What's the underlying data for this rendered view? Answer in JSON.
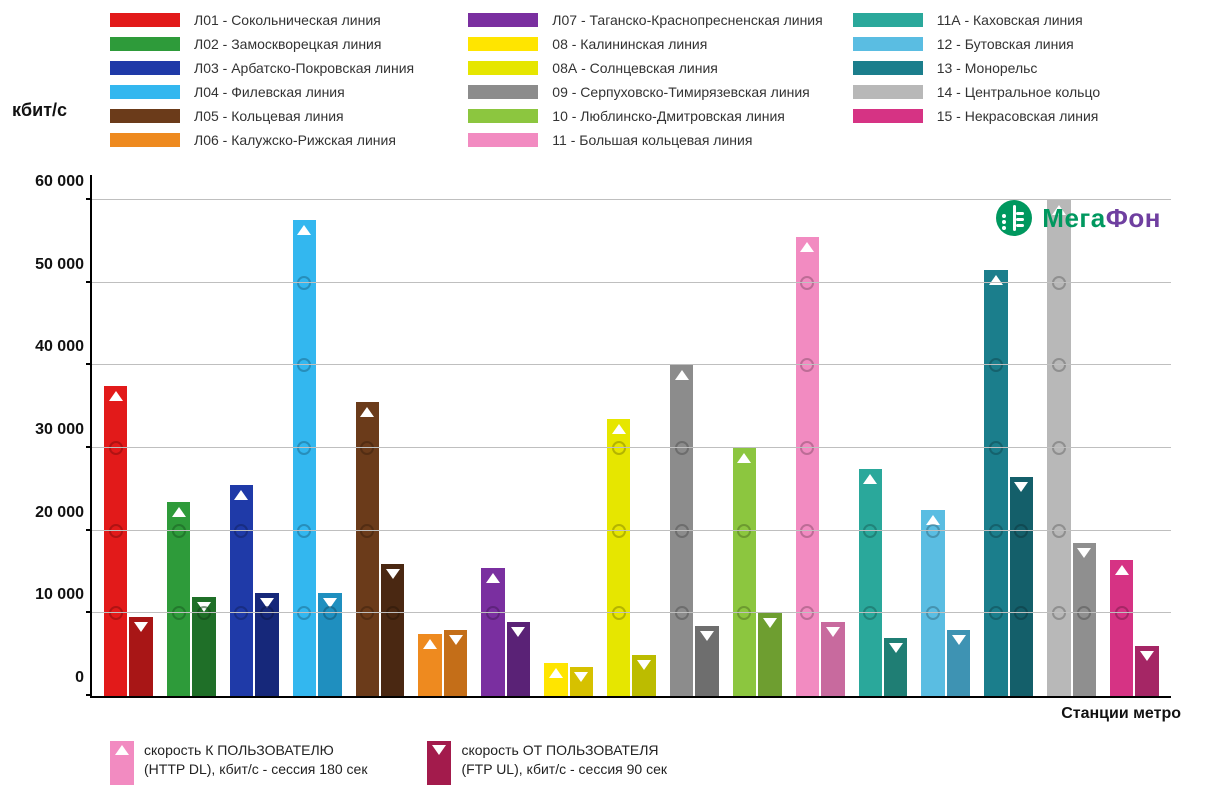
{
  "chart": {
    "type": "bar",
    "y_axis_title": "кбит/с",
    "x_axis_title": "Станции метро",
    "ylim": [
      0,
      63000
    ],
    "ytick_step": 10000,
    "yticks": [
      0,
      10000,
      20000,
      30000,
      40000,
      50000,
      60000
    ],
    "ytick_labels": [
      "0",
      "10 000",
      "20 000",
      "30 000",
      "40 000",
      "50 000",
      "60 000"
    ],
    "background_color": "#ffffff",
    "grid_color": "#bfbfbf",
    "axis_color": "#000000",
    "circle_step": 10000,
    "circle_opacity": 0.55,
    "bar_width_ratio": 0.5,
    "brand": {
      "name": "МегаФон",
      "green": "#00985f",
      "purple": "#6f3fa0"
    },
    "legend_columns": [
      [
        {
          "color": "#e21a1a",
          "label": "Л01 - Сокольническая линия"
        },
        {
          "color": "#2e9b3a",
          "label": "Л02 - Замоскворецкая линия"
        },
        {
          "color": "#1f3aa8",
          "label": "Л03 - Арбатско-Покровская линия"
        },
        {
          "color": "#33b7ef",
          "label": "Л04 - Филевская линия"
        },
        {
          "color": "#6b3b1a",
          "label": "Л05 - Кольцевая линия"
        },
        {
          "color": "#ee8a1f",
          "label": "Л06 - Калужско-Рижская линия"
        }
      ],
      [
        {
          "color": "#7a2fa0",
          "label": "Л07 - Таганско-Краснопресненская линия"
        },
        {
          "color": "#ffe500",
          "label": "08 - Калининская линия"
        },
        {
          "color": "#e6e600",
          "label": "08А - Солнцевская линия"
        },
        {
          "color": "#8c8c8c",
          "label": "09 - Серпуховско-Тимирязевская линия"
        },
        {
          "color": "#8cc63f",
          "label": "10 - Люблинско-Дмитровская линия"
        },
        {
          "color": "#f28bc1",
          "label": "11 - Большая кольцевая линия"
        }
      ],
      [
        {
          "color": "#2aa89b",
          "label": "11А - Каховская линия"
        },
        {
          "color": "#5abde2",
          "label": "12 - Бутовская линия"
        },
        {
          "color": "#1b7e8c",
          "label": "13 - Монорельс"
        },
        {
          "color": "#b8b8b8",
          "label": "14 - Центральное кольцо"
        },
        {
          "color": "#d63384",
          "label": "15 - Некрасовская линия"
        }
      ]
    ],
    "groups": [
      {
        "dl_color": "#e21a1a",
        "ul_color": "#a81616",
        "dl": 37500,
        "ul": 9500
      },
      {
        "dl_color": "#2e9b3a",
        "ul_color": "#1f6f28",
        "dl": 23500,
        "ul": 12000
      },
      {
        "dl_color": "#1f3aa8",
        "ul_color": "#16287a",
        "dl": 25500,
        "ul": 12500
      },
      {
        "dl_color": "#33b7ef",
        "ul_color": "#1f8fbf",
        "dl": 57500,
        "ul": 12500
      },
      {
        "dl_color": "#6b3b1a",
        "ul_color": "#4a2812",
        "dl": 35500,
        "ul": 16000
      },
      {
        "dl_color": "#ee8a1f",
        "ul_color": "#c46e18",
        "dl": 7500,
        "ul": 8000
      },
      {
        "dl_color": "#7a2fa0",
        "ul_color": "#5a2276",
        "dl": 15500,
        "ul": 9000
      },
      {
        "dl_color": "#ffe500",
        "ul_color": "#d6c100",
        "dl": 4000,
        "ul": 3500
      },
      {
        "dl_color": "#e6e600",
        "ul_color": "#bcbc00",
        "dl": 33500,
        "ul": 5000
      },
      {
        "dl_color": "#8c8c8c",
        "ul_color": "#6e6e6e",
        "dl": 40000,
        "ul": 8500
      },
      {
        "dl_color": "#8cc63f",
        "ul_color": "#6e9e30",
        "dl": 30000,
        "ul": 10000
      },
      {
        "dl_color": "#f28bc1",
        "ul_color": "#c86a9e",
        "dl": 55500,
        "ul": 9000
      },
      {
        "dl_color": "#2aa89b",
        "ul_color": "#1f7e74",
        "dl": 27500,
        "ul": 7000
      },
      {
        "dl_color": "#5abde2",
        "ul_color": "#3e93b3",
        "dl": 22500,
        "ul": 8000
      },
      {
        "dl_color": "#1b7e8c",
        "ul_color": "#145f6a",
        "dl": 51500,
        "ul": 26500
      },
      {
        "dl_color": "#b8b8b8",
        "ul_color": "#8f8f8f",
        "dl": 60000,
        "ul": 18500
      },
      {
        "dl_color": "#d63384",
        "ul_color": "#a52665",
        "dl": 16500,
        "ul": 6000
      }
    ],
    "marker_legend": {
      "dl": {
        "swatch_color": "#f28bc1",
        "line1": "скорость К ПОЛЬЗОВАТЕЛЮ",
        "line2": "(HTTP DL), кбит/с - сессия 180 сек"
      },
      "ul": {
        "swatch_color": "#a31b4c",
        "line1": "скорость ОТ ПОЛЬЗОВАТЕЛЯ",
        "line2": "(FTP UL), кбит/с - сессия 90 сек"
      }
    },
    "typography": {
      "legend_fontsize": 14,
      "axis_title_fontsize": 18,
      "tick_fontsize": 16,
      "tick_fontweight": 700
    }
  }
}
